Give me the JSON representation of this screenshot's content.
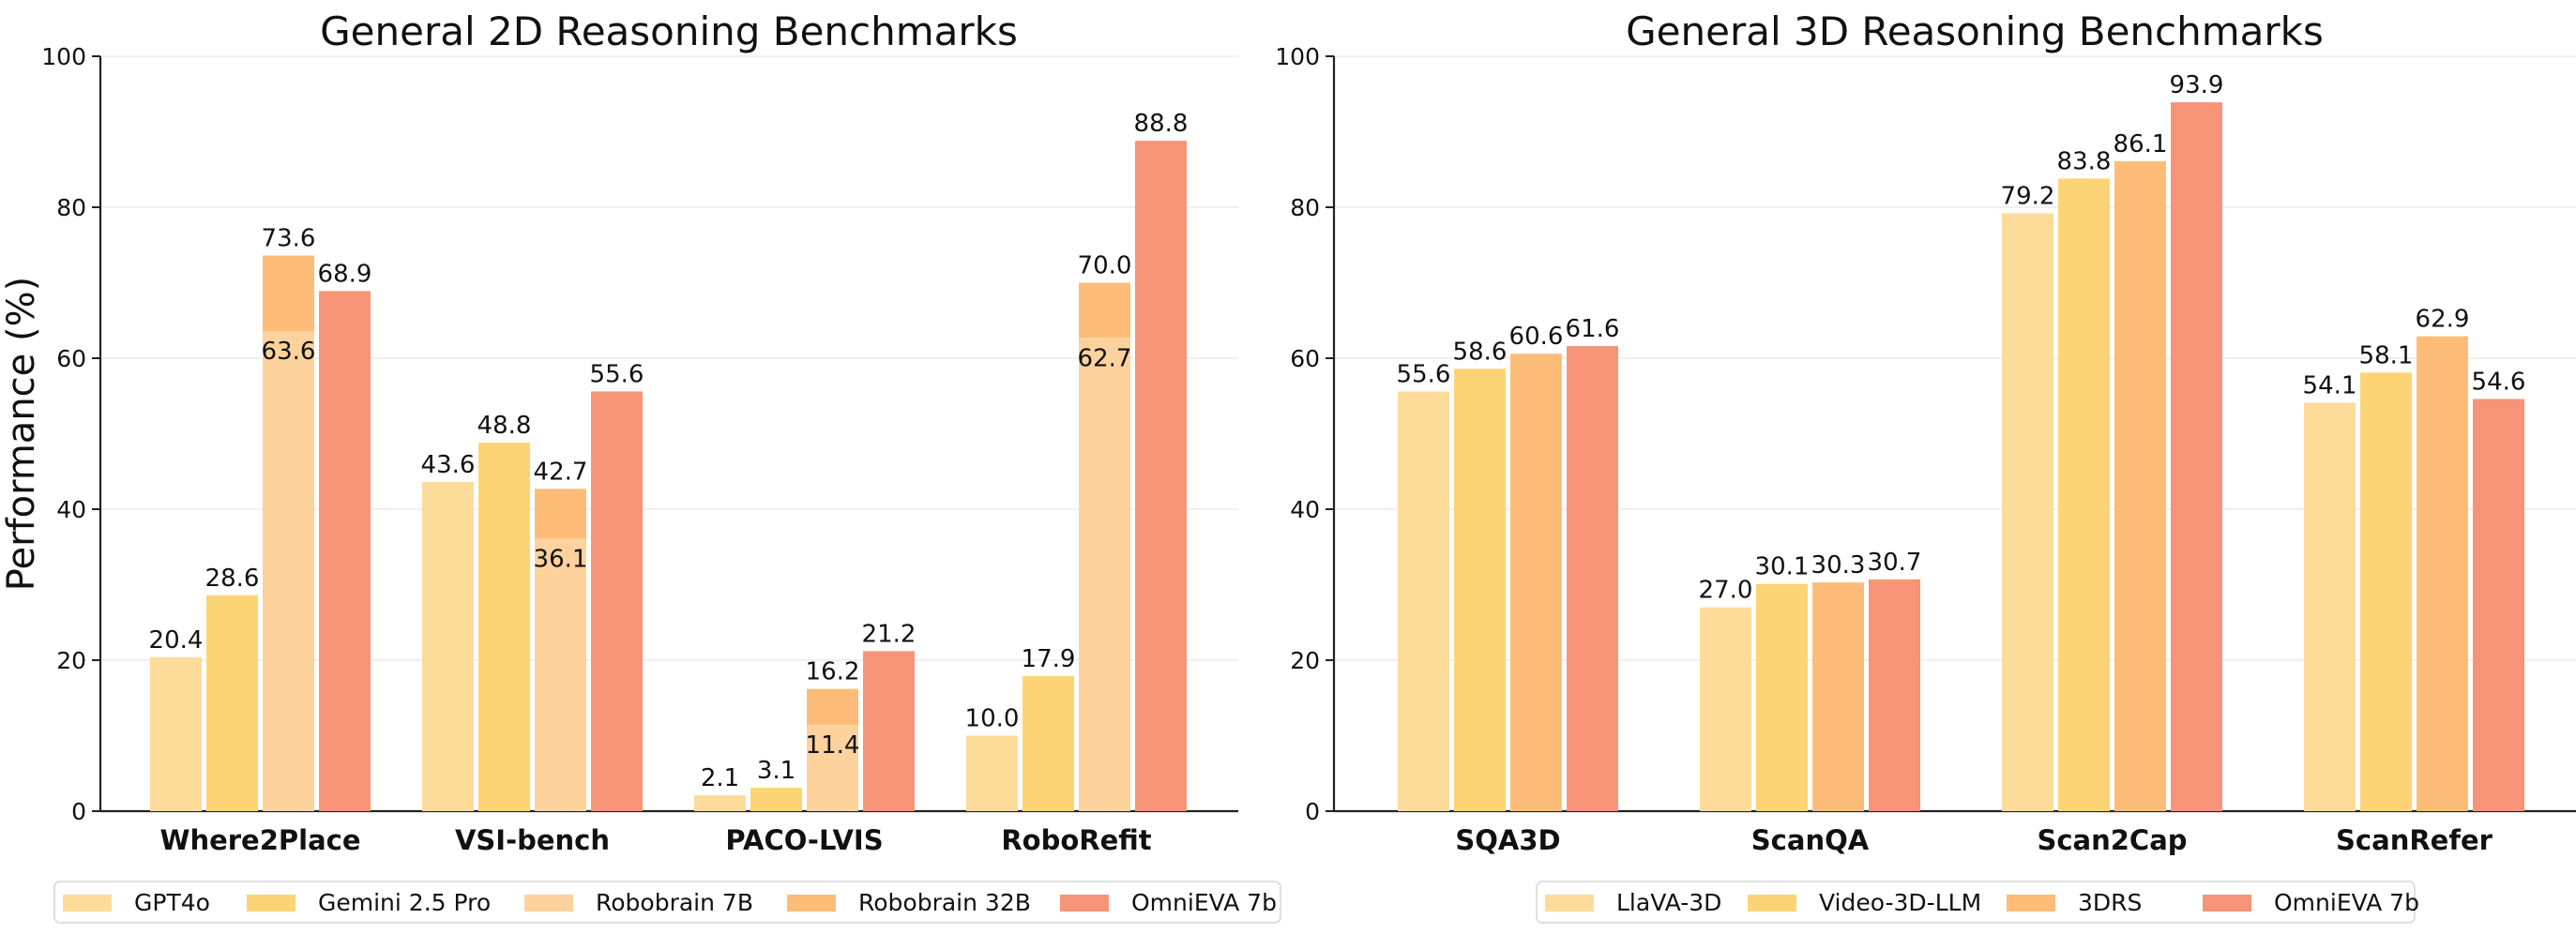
{
  "chart_data": [
    {
      "type": "bar",
      "title": "General 2D Reasoning Benchmarks",
      "xlabel": "",
      "ylabel": "Performance (%)",
      "ylim": [
        0,
        100
      ],
      "yticks": [
        0,
        20,
        40,
        60,
        80,
        100
      ],
      "grid": "y",
      "legend_position": "bottom",
      "categories": [
        "Where2Place",
        "VSI-bench",
        "PACO-LVIS",
        "RoboRefit"
      ],
      "series": [
        {
          "name": "GPT4o",
          "color": "#FDDB98",
          "values": [
            20.4,
            43.6,
            2.1,
            10.0
          ]
        },
        {
          "name": "Gemini 2.5 Pro",
          "color": "#FDD475",
          "values": [
            28.6,
            48.8,
            3.1,
            17.9
          ]
        },
        {
          "name": "Robobrain 7B",
          "color": "#FDD29D",
          "values": [
            63.6,
            36.1,
            11.4,
            62.7
          ]
        },
        {
          "name": "Robobrain 32B",
          "color": "#FDBD78",
          "values": [
            73.6,
            42.7,
            16.2,
            70.0
          ]
        },
        {
          "name": "OmniEVA 7b",
          "color": "#F79478",
          "values": [
            68.9,
            55.6,
            21.2,
            88.8
          ]
        }
      ],
      "stacked_pair": {
        "lower_series": "Robobrain 7B",
        "upper_series": "Robobrain 32B"
      }
    },
    {
      "type": "bar",
      "title": "General 3D Reasoning Benchmarks",
      "xlabel": "",
      "ylabel": "",
      "ylim": [
        0,
        100
      ],
      "yticks": [
        0,
        20,
        40,
        60,
        80,
        100
      ],
      "grid": "y",
      "legend_position": "bottom",
      "categories": [
        "SQA3D",
        "ScanQA",
        "Scan2Cap",
        "ScanRefer"
      ],
      "series": [
        {
          "name": "LlaVA-3D",
          "color": "#FDDB98",
          "values": [
            55.6,
            27.0,
            79.2,
            54.1
          ]
        },
        {
          "name": "Video-3D-LLM",
          "color": "#FDD475",
          "values": [
            58.6,
            30.1,
            83.8,
            58.1
          ]
        },
        {
          "name": "3DRS",
          "color": "#FDBD78",
          "values": [
            60.6,
            30.3,
            86.1,
            62.9
          ]
        },
        {
          "name": "OmniEVA 7b",
          "color": "#F79478",
          "values": [
            61.6,
            30.7,
            93.9,
            54.6
          ]
        }
      ]
    }
  ]
}
